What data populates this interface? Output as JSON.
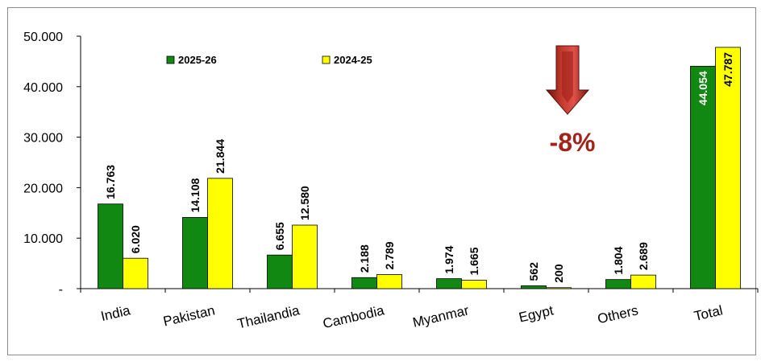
{
  "chart_data": {
    "type": "bar",
    "categories": [
      "India",
      "Pakistan",
      "Thailandia",
      "Cambodia",
      "Myanmar",
      "Egypt",
      "Others",
      "Total"
    ],
    "series": [
      {
        "name": "2025-26",
        "color": "#118811",
        "values": [
          16763,
          14108,
          6655,
          2188,
          1974,
          562,
          1804,
          44054
        ],
        "labels": [
          "16.763",
          "14.108",
          "6.655",
          "2.188",
          "1.974",
          "562",
          "1.804",
          "44.054"
        ]
      },
      {
        "name": "2024-25",
        "color": "#ffff00",
        "values": [
          6020,
          21844,
          12580,
          2789,
          1665,
          200,
          2689,
          47787
        ],
        "labels": [
          "6.020",
          "21.844",
          "12.580",
          "2.789",
          "1.665",
          "200",
          "2.689",
          "47.787"
        ]
      }
    ],
    "ylim": [
      0,
      50000
    ],
    "yticks": [
      0,
      10000,
      20000,
      30000,
      40000,
      50000
    ],
    "ytick_labels": [
      "-",
      "10.000",
      "20.000",
      "30.000",
      "40.000",
      "50.000"
    ],
    "grid": false,
    "legend": "top-left",
    "annotation": {
      "text": "-8%",
      "icon": "down-arrow-icon",
      "color": "#a0241c"
    }
  }
}
